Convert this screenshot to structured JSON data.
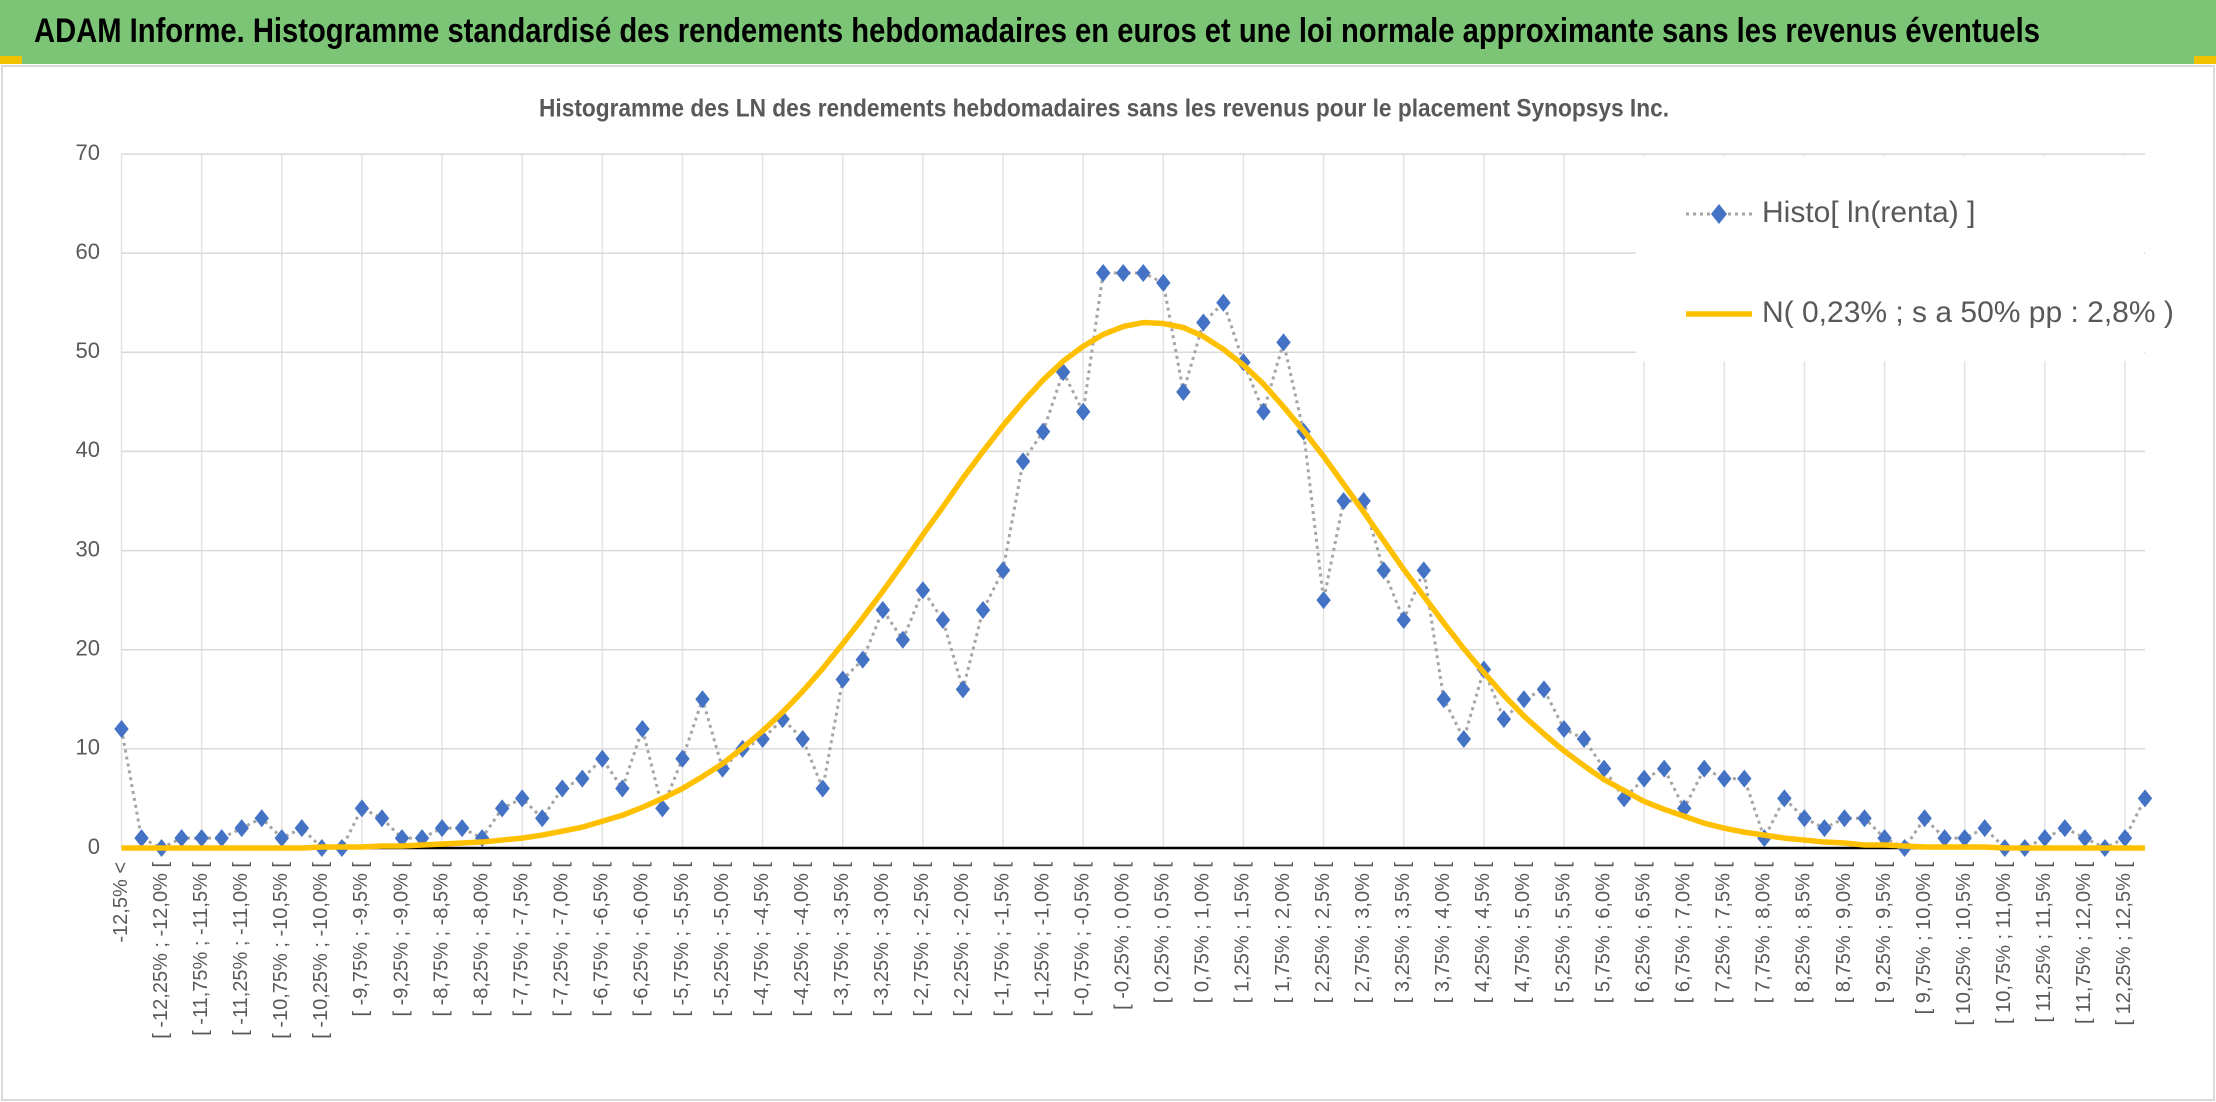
{
  "header": {
    "title": "ADAM Informe. Histogramme standardisé des rendements hebdomadaires en euros et une loi normale approximante sans les revenus éventuels"
  },
  "chart_data": {
    "type": "line",
    "title": "Histogramme des LN des rendements hebdomadaires sans les revenus pour le placement Synopsys Inc.",
    "categories": [
      "-12,5% <",
      null,
      "[ -12,25% ; -12,0% [",
      null,
      "[ -11,75% ; -11,5% [",
      null,
      "[ -11,25% ; -11,0% [",
      null,
      "[ -10,75% ; -10,5% [",
      null,
      "[ -10,25% ; -10,0% [",
      null,
      "[ -9,75% ; -9,5% [",
      null,
      "[ -9,25% ; -9,0% [",
      null,
      "[ -8,75% ; -8,5% [",
      null,
      "[ -8,25% ; -8,0% [",
      null,
      "[ -7,75% ; -7,5% [",
      null,
      "[ -7,25% ; -7,0% [",
      null,
      "[ -6,75% ; -6,5% [",
      null,
      "[ -6,25% ; -6,0% [",
      null,
      "[ -5,75% ; -5,5% [",
      null,
      "[ -5,25% ; -5,0% [",
      null,
      "[ -4,75% ; -4,5% [",
      null,
      "[ -4,25% ; -4,0% [",
      null,
      "[ -3,75% ; -3,5% [",
      null,
      "[ -3,25% ; -3,0% [",
      null,
      "[ -2,75% ; -2,5% [",
      null,
      "[ -2,25% ; -2,0% [",
      null,
      "[ -1,75% ; -1,5% [",
      null,
      "[ -1,25% ; -1,0% [",
      null,
      "[ -0,75% ; -0,5% [",
      null,
      "[ -0,25% ; 0,0% [",
      null,
      "[ 0,25% ; 0,5% [",
      null,
      "[ 0,75% ; 1,0% [",
      null,
      "[ 1,25% ; 1,5% [",
      null,
      "[ 1,75% ; 2,0% [",
      null,
      "[ 2,25% ; 2,5% [",
      null,
      "[ 2,75% ; 3,0% [",
      null,
      "[ 3,25% ; 3,5% [",
      null,
      "[ 3,75% ; 4,0% [",
      null,
      "[ 4,25% ; 4,5% [",
      null,
      "[ 4,75% ; 5,0% [",
      null,
      "[ 5,25% ; 5,5% [",
      null,
      "[ 5,75% ; 6,0% [",
      null,
      "[ 6,25% ; 6,5% [",
      null,
      "[ 6,75% ; 7,0% [",
      null,
      "[ 7,25% ; 7,5% [",
      null,
      "[ 7,75% ; 8,0% [",
      null,
      "[ 8,25% ; 8,5% [",
      null,
      "[ 8,75% ; 9,0% [",
      null,
      "[ 9,25% ; 9,5% [",
      null,
      "[ 9,75% ; 10,0% [",
      null,
      "[ 10,25% ; 10,5% [",
      null,
      "[ 10,75% ; 11,0% [",
      null,
      "[ 11,25% ; 11,5% [",
      null,
      "[ 11,75% ; 12,0% [",
      null,
      "[ 12,25% ; 12,5% [",
      null
    ],
    "series": [
      {
        "name": "Histo[ ln(renta) ]",
        "color": "#4472c4",
        "line_color": "#a5a5a5",
        "marker": "diamond",
        "values": [
          12,
          1,
          0,
          1,
          1,
          1,
          2,
          3,
          1,
          2,
          0,
          0,
          4,
          3,
          1,
          1,
          2,
          2,
          1,
          4,
          5,
          3,
          6,
          7,
          9,
          6,
          12,
          4,
          9,
          15,
          8,
          10,
          11,
          13,
          11,
          6,
          17,
          19,
          24,
          21,
          26,
          23,
          16,
          24,
          28,
          39,
          42,
          48,
          44,
          58,
          58,
          58,
          57,
          46,
          53,
          55,
          49,
          44,
          51,
          42,
          25,
          35,
          35,
          28,
          23,
          28,
          15,
          11,
          18,
          13,
          15,
          16,
          12,
          11,
          8,
          5,
          7,
          8,
          4,
          8,
          7,
          7,
          1,
          5,
          3,
          2,
          3,
          3,
          1,
          0,
          3,
          1,
          1,
          2,
          0,
          0,
          1,
          2,
          1,
          0,
          1,
          5
        ]
      },
      {
        "name": "N( 0,23% ; s a 50% pp : 2,8% )",
        "color": "#ffc000",
        "values": [
          0,
          0,
          0,
          0,
          0,
          0,
          0,
          0,
          0,
          0,
          0.1,
          0.1,
          0.1,
          0.2,
          0.2,
          0.3,
          0.4,
          0.5,
          0.6,
          0.8,
          1.0,
          1.3,
          1.7,
          2.1,
          2.7,
          3.3,
          4.1,
          5.0,
          6.0,
          7.2,
          8.5,
          10.1,
          11.8,
          13.7,
          15.8,
          18.1,
          20.6,
          23.2,
          25.9,
          28.7,
          31.6,
          34.4,
          37.3,
          40.0,
          42.6,
          45.0,
          47.2,
          49.1,
          50.6,
          51.8,
          52.6,
          53.0,
          52.9,
          52.5,
          51.6,
          50.3,
          48.7,
          46.8,
          44.5,
          42.1,
          39.5,
          36.7,
          33.9,
          31.0,
          28.1,
          25.4,
          22.7,
          20.1,
          17.7,
          15.4,
          13.3,
          11.5,
          9.8,
          8.3,
          6.9,
          5.8,
          4.7,
          3.9,
          3.2,
          2.5,
          2.0,
          1.6,
          1.3,
          1.0,
          0.8,
          0.6,
          0.5,
          0.3,
          0.3,
          0.2,
          0.1,
          0.1,
          0.1,
          0.1,
          0,
          0,
          0,
          0,
          0,
          0,
          0,
          0
        ]
      }
    ],
    "ylim": [
      0,
      70
    ],
    "yticks": [
      0,
      10,
      20,
      30,
      40,
      50,
      60,
      70
    ],
    "grid": true,
    "legend": "upper right"
  }
}
